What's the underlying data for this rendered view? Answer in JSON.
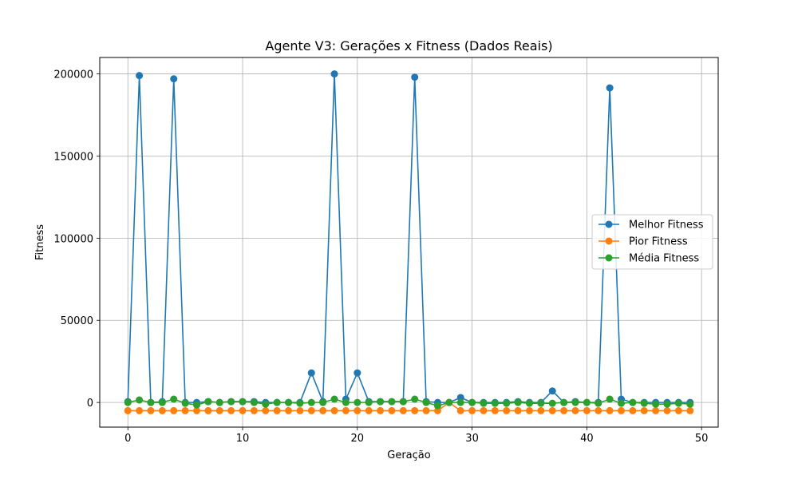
{
  "chart_data": {
    "type": "line",
    "title": "Agente V3: Gerações x Fitness (Dados Reais)",
    "xlabel": "Geração",
    "ylabel": "Fitness",
    "xlim": [
      -2.45,
      51.45
    ],
    "ylim": [
      -15000,
      210000
    ],
    "xticks": [
      0,
      10,
      20,
      30,
      40,
      50
    ],
    "yticks": [
      0,
      50000,
      100000,
      150000,
      200000
    ],
    "grid": true,
    "legend_position": "center-right",
    "x": [
      0,
      1,
      2,
      3,
      4,
      5,
      6,
      7,
      8,
      9,
      10,
      11,
      12,
      13,
      14,
      15,
      16,
      17,
      18,
      19,
      20,
      21,
      22,
      23,
      24,
      25,
      26,
      27,
      28,
      29,
      30,
      31,
      32,
      33,
      34,
      35,
      36,
      37,
      38,
      39,
      40,
      41,
      42,
      43,
      44,
      45,
      46,
      47,
      48,
      49
    ],
    "series": [
      {
        "name": "Melhor Fitness",
        "color": "#1f77b4",
        "values": [
          500,
          199000,
          0,
          500,
          197000,
          0,
          0,
          500,
          0,
          500,
          500,
          500,
          0,
          0,
          0,
          0,
          18000,
          500,
          200000,
          2000,
          18000,
          500,
          500,
          500,
          500,
          198000,
          500,
          0,
          0,
          3000,
          0,
          0,
          0,
          0,
          500,
          0,
          0,
          7000,
          0,
          500,
          0,
          0,
          191500,
          2000,
          0,
          0,
          0,
          0,
          0,
          0
        ]
      },
      {
        "name": "Pior Fitness",
        "color": "#ff7f0e",
        "values": [
          -5000,
          -5000,
          -5000,
          -5000,
          -5000,
          -5000,
          -5000,
          -5000,
          -5000,
          -5000,
          -5000,
          -5000,
          -5000,
          -5000,
          -5000,
          -5000,
          -5000,
          -5000,
          -5000,
          -5000,
          -5000,
          -5000,
          -5000,
          -5000,
          -5000,
          -5000,
          -5000,
          -5000,
          0,
          -5000,
          -5000,
          -5000,
          -5000,
          -5000,
          -5000,
          -5000,
          -5000,
          -5000,
          -5000,
          -5000,
          -5000,
          -5000,
          -5000,
          -5000,
          -5000,
          -5000,
          -5000,
          -5000,
          -5000,
          -5000
        ]
      },
      {
        "name": "Média Fitness",
        "color": "#2ca02c",
        "values": [
          0,
          1500,
          0,
          0,
          2000,
          -500,
          -1500,
          500,
          0,
          500,
          500,
          0,
          -1000,
          0,
          0,
          -500,
          0,
          0,
          2000,
          0,
          0,
          0,
          500,
          500,
          500,
          2000,
          0,
          -2000,
          0,
          0,
          0,
          -500,
          -500,
          -500,
          0,
          -500,
          -500,
          -500,
          0,
          0,
          0,
          -500,
          2000,
          -500,
          0,
          -500,
          -1000,
          -1000,
          -500,
          -1000
        ]
      }
    ]
  }
}
